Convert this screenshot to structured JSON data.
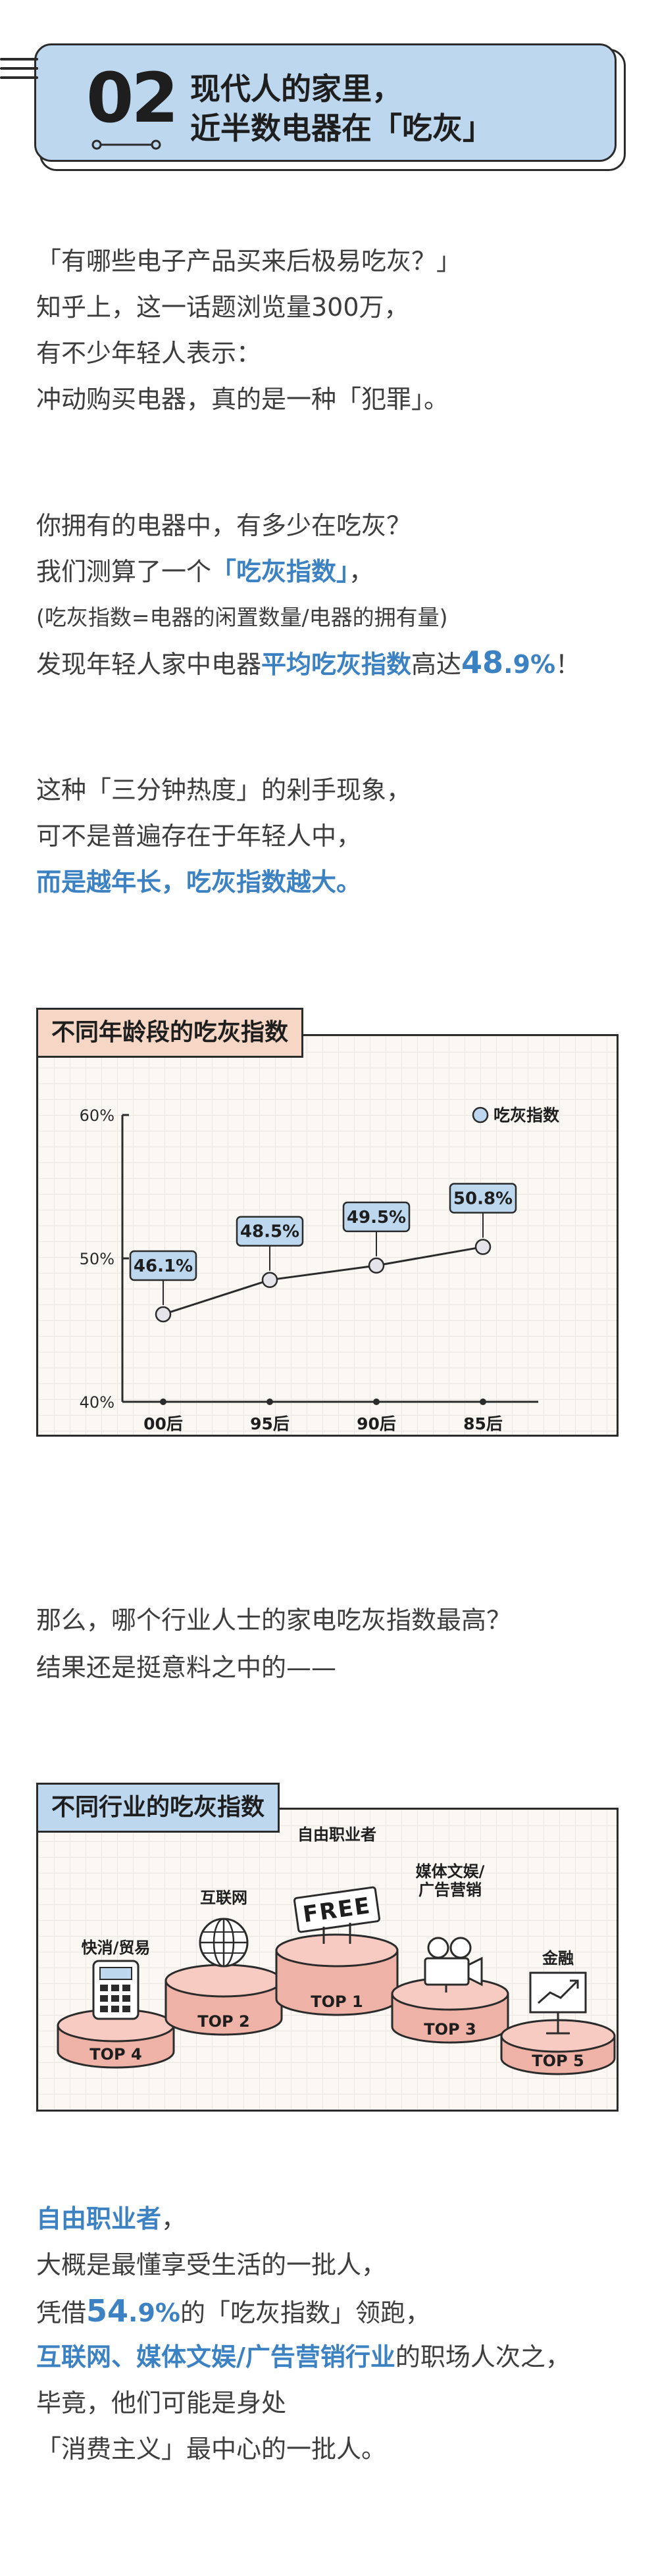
{
  "header": {
    "number": "02",
    "title_line1": "现代人的家里，",
    "title_line2": "近半数电器在「吃灰」"
  },
  "intro": {
    "p1": [
      "「有哪些电子产品买来后极易吃灰？」",
      "知乎上，这一话题浏览量300万，",
      "有不少年轻人表示：",
      "冲动购买电器，真的是一种「犯罪」。"
    ],
    "p2_line1": "你拥有的电器中，有多少在吃灰？",
    "p2_line2_pre": "我们测算了一个",
    "p2_line2_hl": "「吃灰指数」",
    "p2_line2_post": "，",
    "p2_formula": "(吃灰指数=电器的闲置数量/电器的拥有量)",
    "p2_line4_pre": "发现年轻人家中电器",
    "p2_line4_hl": "平均吃灰指数",
    "p2_line4_mid": "高达",
    "p2_line4_num": "48",
    "p2_line4_pct": ".9%",
    "p2_line4_post": "！",
    "p3_line1": "这种「三分钟热度」的剁手现象，",
    "p3_line2": "可不是普遍存在于年轻人中，",
    "p3_line3": "而是越年长，吃灰指数越大。"
  },
  "chart1": {
    "tag": "不同年龄段的吃灰指数",
    "legend": "吃灰指数"
  },
  "chart_data": {
    "type": "line",
    "categories": [
      "00后",
      "95后",
      "90后",
      "85后"
    ],
    "series": [
      {
        "name": "吃灰指数",
        "values": [
          46.1,
          48.5,
          49.5,
          50.8
        ]
      }
    ],
    "labels": [
      "46.1%",
      "48.5%",
      "49.5%",
      "50.8%"
    ],
    "yticks": [
      "60%",
      "50%",
      "40%"
    ],
    "ylim": [
      40,
      60
    ]
  },
  "middle": {
    "line1": "那么，哪个行业人士的家电吃灰指数最高？",
    "line2": "结果还是挺意料之中的——"
  },
  "chart2": {
    "tag": "不同行业的吃灰指数",
    "free_sign": "FREE",
    "items": [
      {
        "name_lines": [
          "快消/贸易"
        ],
        "rank": "TOP 4",
        "icon": "calculator-icon"
      },
      {
        "name_lines": [
          "互联网"
        ],
        "rank": "TOP 2",
        "icon": "globe-icon"
      },
      {
        "name_lines": [
          "自由职业者"
        ],
        "rank": "TOP 1",
        "icon": "free-sign-icon"
      },
      {
        "name_lines": [
          "媒体文娱/",
          "广告营销"
        ],
        "rank": "TOP 3",
        "icon": "video-camera-icon"
      },
      {
        "name_lines": [
          "金融"
        ],
        "rank": "TOP 5",
        "icon": "chart-board-icon"
      }
    ]
  },
  "outro": {
    "l1_hl": "自由职业者",
    "l1_post": "，",
    "l2": "大概是最懂享受生活的一批人，",
    "l3_pre": "凭借",
    "l3_num": "54",
    "l3_pct": ".9%",
    "l3_post": "的「吃灰指数」领跑，",
    "l4_hl": "互联网、媒体文娱/广告营销行业",
    "l4_post": "的职场人次之，",
    "l5": "毕竟，他们可能是身处",
    "l6": "「消费主义」最中心的一批人。"
  },
  "colors": {
    "accent_blue": "#3c82c2",
    "header_blue": "#bcd7ee",
    "tag_peach": "#f6d6c4",
    "pedestal_pink": "#f7cbc2"
  }
}
